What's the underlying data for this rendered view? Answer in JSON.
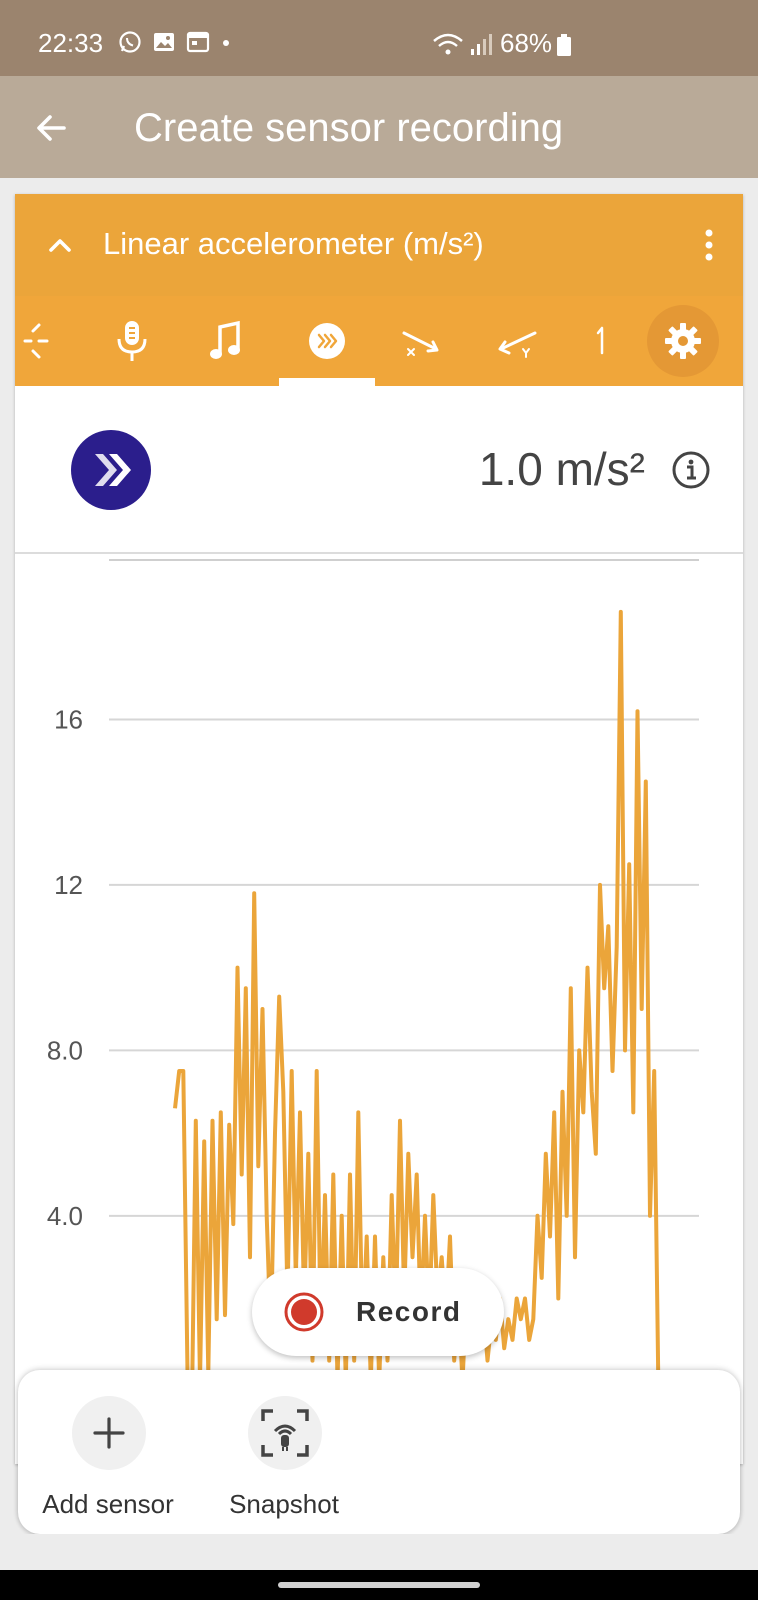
{
  "status_bar": {
    "time": "22:33",
    "battery": "68%",
    "left_icons": [
      "whatsapp-icon",
      "gallery-icon",
      "calendar-icon",
      "dot-icon"
    ],
    "right_icons": [
      "wifi-icon",
      "signal-icon",
      "battery-icon"
    ]
  },
  "app_bar": {
    "title": "Create sensor recording",
    "back_icon": "back-arrow-icon"
  },
  "sensor_card": {
    "title": "Linear accelerometer (m/s²)",
    "collapse_icon": "chevron-up-icon",
    "menu_icon": "more-vert-icon",
    "tabs": [
      {
        "name": "ambient-light",
        "icon": "light-icon"
      },
      {
        "name": "sound-intensity",
        "icon": "microphone-icon"
      },
      {
        "name": "pitch",
        "icon": "music-note-icon"
      },
      {
        "name": "linear-accelerometer",
        "icon": "acceleration-icon",
        "selected": true
      },
      {
        "name": "accelerometer-x",
        "icon": "accel-x-icon"
      },
      {
        "name": "accelerometer-y",
        "icon": "accel-y-icon"
      },
      {
        "name": "accelerometer-z",
        "icon": "accel-z-icon"
      }
    ],
    "settings_icon": "gear-icon",
    "reading": "1.0 m/s²",
    "info_icon": "info-icon",
    "accent_color": "#eba53a",
    "sensor_icon_color": "#2b1e8c"
  },
  "chart_data": {
    "type": "line",
    "title": "",
    "xlabel": "",
    "ylabel": "",
    "ylim": [
      -2,
      20
    ],
    "ytick_labels": [
      "4.0",
      "8.0",
      "12",
      "16"
    ],
    "ytick_values": [
      4,
      8,
      12,
      16
    ],
    "grid": true,
    "series": [
      {
        "color": "#eba53a",
        "x": [
          0,
          1,
          2,
          3,
          4,
          5,
          6,
          7,
          8,
          9,
          10,
          11,
          12,
          13,
          14,
          15,
          16,
          17,
          18,
          19,
          20,
          21,
          22,
          23,
          24,
          25,
          26,
          27,
          28,
          29,
          30,
          31,
          32,
          33,
          34,
          35,
          36,
          37,
          38,
          39,
          40,
          41,
          42,
          43,
          44,
          45,
          46,
          47,
          48,
          49,
          50,
          51,
          52,
          53,
          54,
          55,
          56,
          57,
          58,
          59,
          60,
          61,
          62,
          63,
          64,
          65,
          66,
          67,
          68,
          69,
          70,
          71,
          72,
          73,
          74,
          75,
          76,
          77,
          78,
          79,
          80,
          81,
          82,
          83,
          84,
          85,
          86,
          87,
          88,
          89,
          90,
          91,
          92,
          93,
          94,
          95,
          96,
          97,
          98,
          99,
          100,
          101,
          102,
          103,
          104,
          105,
          106,
          107,
          108,
          109,
          110,
          111,
          112,
          113,
          114,
          115,
          116,
          117,
          118,
          119,
          120
        ],
        "y": [
          6.6,
          7.5,
          7.5,
          0.2,
          -1.0,
          6.3,
          0.0,
          5.8,
          0.2,
          6.3,
          1.5,
          6.5,
          1.6,
          6.2,
          3.8,
          10.0,
          5.0,
          9.5,
          3.0,
          11.8,
          5.2,
          9.0,
          4.0,
          1.0,
          6.0,
          9.3,
          7.0,
          2.0,
          7.5,
          2.5,
          6.5,
          1.8,
          5.5,
          0.5,
          7.5,
          1.0,
          4.5,
          0.5,
          5.0,
          0.0,
          4.0,
          0.0,
          5.0,
          0.5,
          6.5,
          1.0,
          3.5,
          0.0,
          3.5,
          0.0,
          3.0,
          0.5,
          4.5,
          1.5,
          6.3,
          2.0,
          5.5,
          3.0,
          5.0,
          1.5,
          4.0,
          1.5,
          4.5,
          2.0,
          3.0,
          1.5,
          3.5,
          0.5,
          2.0,
          0.0,
          2.2,
          1.5,
          2.0,
          1.0,
          1.8,
          0.5,
          1.5,
          1.0,
          2.0,
          0.8,
          1.5,
          1.0,
          2.0,
          1.5,
          2.0,
          1.0,
          1.5,
          4.0,
          2.5,
          5.5,
          3.5,
          6.5,
          2.0,
          7.0,
          4.0,
          9.5,
          3.0,
          8.0,
          6.5,
          10.0,
          7.0,
          5.5,
          12.0,
          9.5,
          11.0,
          7.5,
          10.5,
          18.6,
          8.0,
          12.5,
          6.5,
          16.2,
          9.0,
          14.5,
          4.0,
          7.5,
          0.0,
          -0.5,
          -1.5,
          -2.0,
          -2.0
        ]
      }
    ]
  },
  "record_button": {
    "label": "Record",
    "icon": "record-icon"
  },
  "bottom_actions": [
    {
      "label": "Add sensor",
      "icon": "plus-icon"
    },
    {
      "label": "Snapshot",
      "icon": "snapshot-icon"
    }
  ]
}
